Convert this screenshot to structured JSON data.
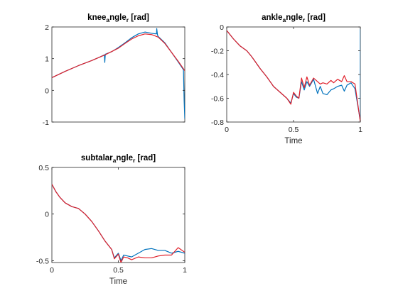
{
  "chart_data": [
    {
      "type": "line",
      "title_parts": [
        "knee",
        "a",
        "ngle",
        "r",
        " [rad]"
      ],
      "xlabel": "",
      "xlim": [
        0,
        1
      ],
      "ylim": [
        -1,
        2
      ],
      "xticks": [],
      "yticks": [
        -1,
        0,
        1,
        2
      ],
      "series": [
        {
          "color": "#0072BD",
          "x": [
            0,
            0.1,
            0.2,
            0.3,
            0.36,
            0.395,
            0.398,
            0.402,
            0.45,
            0.5,
            0.55,
            0.6,
            0.65,
            0.7,
            0.75,
            0.787,
            0.789,
            0.795,
            0.8,
            0.85,
            0.9,
            0.95,
            0.99,
            0.995,
            1.0
          ],
          "y": [
            0.4,
            0.6,
            0.78,
            0.94,
            1.05,
            1.12,
            0.88,
            1.14,
            1.22,
            1.35,
            1.5,
            1.66,
            1.78,
            1.84,
            1.8,
            1.78,
            1.95,
            1.74,
            1.7,
            1.5,
            1.2,
            0.9,
            0.65,
            -0.3,
            -0.9
          ]
        },
        {
          "color": "#E0202A",
          "x": [
            0,
            0.1,
            0.2,
            0.3,
            0.4,
            0.5,
            0.55,
            0.6,
            0.65,
            0.7,
            0.75,
            0.8,
            0.85,
            0.9,
            0.95,
            1.0
          ],
          "y": [
            0.4,
            0.6,
            0.78,
            0.94,
            1.12,
            1.33,
            1.48,
            1.62,
            1.72,
            1.78,
            1.76,
            1.68,
            1.48,
            1.2,
            0.92,
            0.62
          ]
        }
      ]
    },
    {
      "type": "line",
      "title_parts": [
        "ankle",
        "a",
        "ngle",
        "r",
        " [rad]"
      ],
      "xlabel": "Time",
      "xlim": [
        0,
        1
      ],
      "ylim": [
        -0.8,
        0
      ],
      "xticks": [
        0,
        0.5,
        1
      ],
      "yticks": [
        -0.8,
        -0.6,
        -0.4,
        -0.2,
        0
      ],
      "series": [
        {
          "color": "#0072BD",
          "x": [
            0,
            0.05,
            0.1,
            0.15,
            0.18,
            0.2,
            0.25,
            0.3,
            0.35,
            0.4,
            0.45,
            0.48,
            0.5,
            0.52,
            0.54,
            0.56,
            0.58,
            0.6,
            0.62,
            0.65,
            0.68,
            0.7,
            0.72,
            0.75,
            0.78,
            0.8,
            0.83,
            0.86,
            0.88,
            0.9,
            0.93,
            0.96,
            1.0,
            1.0
          ],
          "y": [
            -0.03,
            -0.1,
            -0.16,
            -0.2,
            -0.24,
            -0.27,
            -0.35,
            -0.42,
            -0.5,
            -0.55,
            -0.6,
            -0.64,
            -0.56,
            -0.59,
            -0.6,
            -0.46,
            -0.53,
            -0.46,
            -0.5,
            -0.44,
            -0.56,
            -0.5,
            -0.56,
            -0.57,
            -0.53,
            -0.52,
            -0.5,
            -0.49,
            -0.54,
            -0.49,
            -0.47,
            -0.52,
            -0.79,
            -0.02
          ]
        },
        {
          "color": "#E0202A",
          "x": [
            0,
            0.05,
            0.1,
            0.15,
            0.18,
            0.2,
            0.25,
            0.3,
            0.35,
            0.4,
            0.45,
            0.48,
            0.5,
            0.52,
            0.54,
            0.56,
            0.58,
            0.6,
            0.62,
            0.65,
            0.68,
            0.7,
            0.72,
            0.75,
            0.78,
            0.8,
            0.83,
            0.86,
            0.88,
            0.9,
            0.93,
            0.96,
            1.0
          ],
          "y": [
            -0.03,
            -0.1,
            -0.16,
            -0.2,
            -0.24,
            -0.27,
            -0.35,
            -0.42,
            -0.5,
            -0.55,
            -0.6,
            -0.65,
            -0.55,
            -0.58,
            -0.6,
            -0.43,
            -0.51,
            -0.42,
            -0.49,
            -0.43,
            -0.46,
            -0.48,
            -0.47,
            -0.48,
            -0.45,
            -0.47,
            -0.44,
            -0.46,
            -0.41,
            -0.46,
            -0.46,
            -0.48,
            -0.8
          ]
        }
      ]
    },
    {
      "type": "line",
      "title_parts": [
        "subtalar",
        "a",
        "ngle",
        "r",
        " [rad]"
      ],
      "xlabel": "Time",
      "xlim": [
        0,
        1
      ],
      "ylim": [
        -0.52,
        0.5
      ],
      "xticks": [
        0,
        0.5,
        1
      ],
      "yticks": [
        -0.5,
        0,
        0.5
      ],
      "series": [
        {
          "color": "#0072BD",
          "x": [
            0,
            0.03,
            0.06,
            0.1,
            0.15,
            0.2,
            0.25,
            0.3,
            0.35,
            0.4,
            0.45,
            0.47,
            0.5,
            0.52,
            0.54,
            0.57,
            0.6,
            0.65,
            0.7,
            0.75,
            0.8,
            0.85,
            0.9,
            0.95,
            1.0
          ],
          "y": [
            0.32,
            0.24,
            0.18,
            0.12,
            0.08,
            0.06,
            0.0,
            -0.08,
            -0.18,
            -0.29,
            -0.38,
            -0.47,
            -0.42,
            -0.5,
            -0.44,
            -0.45,
            -0.46,
            -0.42,
            -0.38,
            -0.37,
            -0.39,
            -0.39,
            -0.42,
            -0.4,
            -0.42
          ]
        },
        {
          "color": "#E0202A",
          "x": [
            0,
            0.03,
            0.06,
            0.1,
            0.15,
            0.2,
            0.25,
            0.3,
            0.35,
            0.4,
            0.45,
            0.47,
            0.5,
            0.52,
            0.54,
            0.57,
            0.6,
            0.65,
            0.7,
            0.75,
            0.8,
            0.85,
            0.9,
            0.95,
            1.0
          ],
          "y": [
            0.32,
            0.24,
            0.18,
            0.12,
            0.08,
            0.06,
            0.0,
            -0.08,
            -0.18,
            -0.29,
            -0.38,
            -0.48,
            -0.43,
            -0.52,
            -0.46,
            -0.47,
            -0.49,
            -0.46,
            -0.47,
            -0.47,
            -0.45,
            -0.44,
            -0.44,
            -0.36,
            -0.41
          ]
        }
      ]
    }
  ]
}
